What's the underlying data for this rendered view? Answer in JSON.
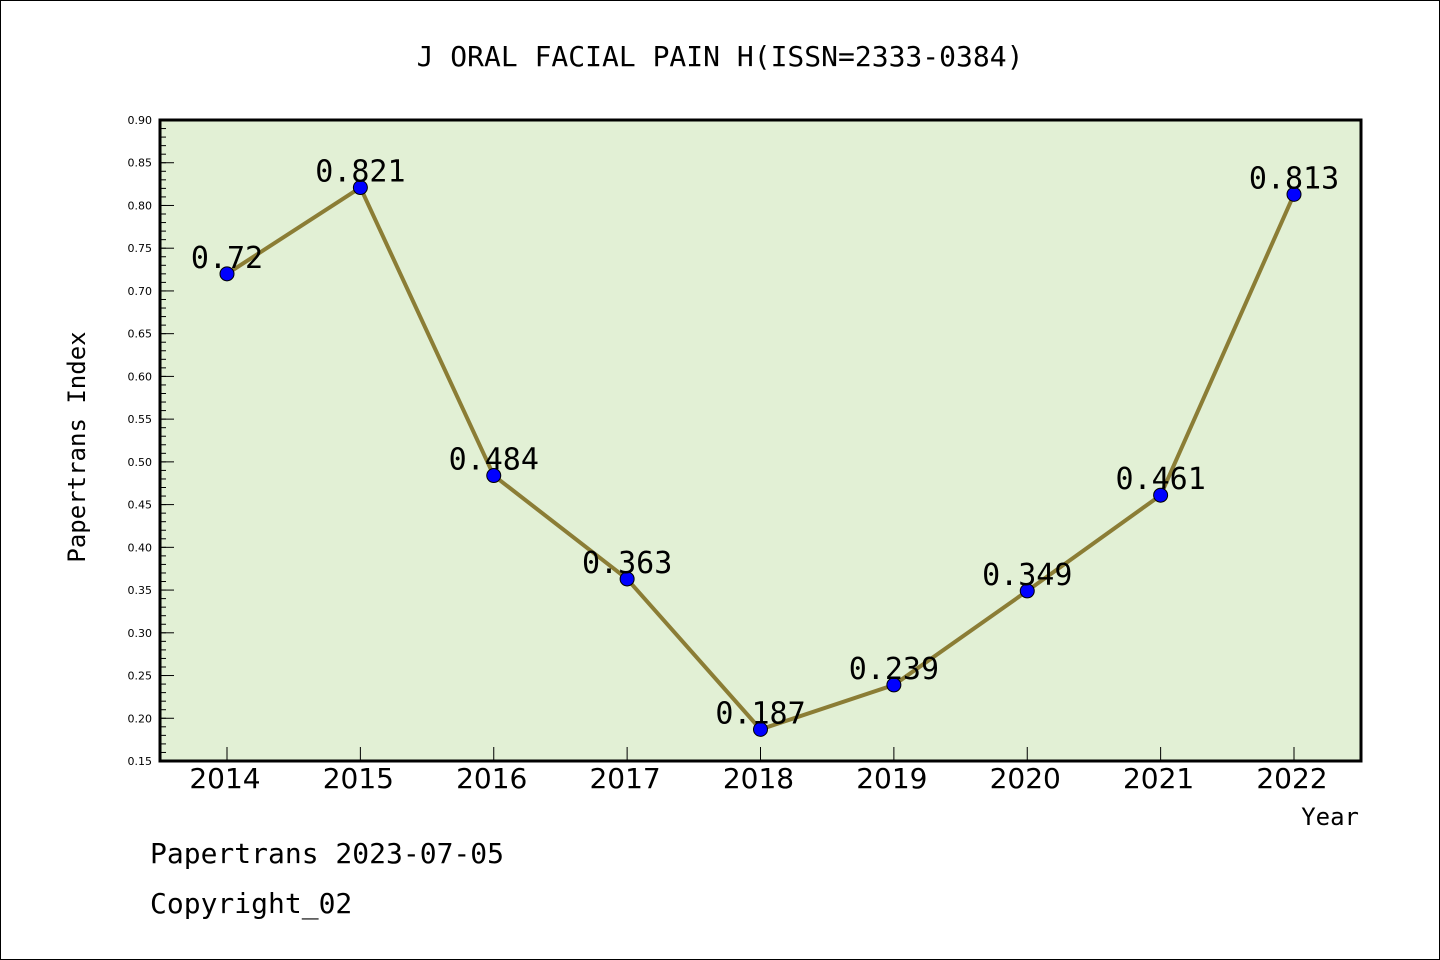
{
  "chart_data": {
    "type": "line",
    "title": "J ORAL FACIAL PAIN H(ISSN=2333-0384)",
    "xlabel": "Year",
    "ylabel": "Papertrans Index",
    "x": [
      "2014",
      "2015",
      "2016",
      "2017",
      "2018",
      "2019",
      "2020",
      "2021",
      "2022"
    ],
    "values": [
      0.72,
      0.821,
      0.484,
      0.363,
      0.187,
      0.239,
      0.349,
      0.461,
      0.813
    ],
    "data_labels": [
      "0.72",
      "0.821",
      "0.484",
      "0.363",
      "0.187",
      "0.239",
      "0.349",
      "0.461",
      "0.813"
    ],
    "ylim": [
      0.15,
      0.9
    ],
    "yticks": [
      "0.15",
      "0.20",
      "0.25",
      "0.30",
      "0.35",
      "0.40",
      "0.45",
      "0.50",
      "0.55",
      "0.60",
      "0.65",
      "0.70",
      "0.75",
      "0.80",
      "0.85",
      "0.90"
    ],
    "grid": false,
    "colors": {
      "plot_background": "#e2f0d5",
      "line": "#8b7d35",
      "marker": "#0000ff"
    }
  },
  "footer": {
    "line1": "Papertrans 2023-07-05",
    "line2": "Copyright_02"
  }
}
